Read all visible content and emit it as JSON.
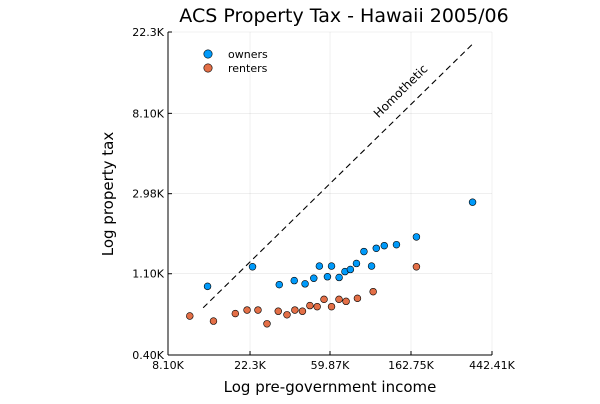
{
  "chart_data": {
    "type": "scatter",
    "title": "ACS Property Tax - Hawaii 2005/06",
    "xlabel": "Log pre-government income",
    "ylabel": "Log property tax",
    "x_scale": "log",
    "y_scale": "log",
    "xlim": [
      8100,
      442410
    ],
    "ylim": [
      400,
      22300
    ],
    "x_ticks": [
      {
        "value": 8100,
        "label": "8.10K"
      },
      {
        "value": 22300,
        "label": "22.3K"
      },
      {
        "value": 59870,
        "label": "59.87K"
      },
      {
        "value": 162750,
        "label": "162.75K"
      },
      {
        "value": 442410,
        "label": "442.41K"
      }
    ],
    "y_ticks": [
      {
        "value": 400,
        "label": "0.40K"
      },
      {
        "value": 1100,
        "label": "1.10K"
      },
      {
        "value": 2980,
        "label": "2.98K"
      },
      {
        "value": 8100,
        "label": "8.10K"
      },
      {
        "value": 22300,
        "label": "22.3K"
      }
    ],
    "grid": true,
    "legend_position": "top-left",
    "series": [
      {
        "name": "owners",
        "color": "#009AFA",
        "points": [
          [
            13200,
            940
          ],
          [
            23000,
            1200
          ],
          [
            32000,
            960
          ],
          [
            38500,
            1010
          ],
          [
            44000,
            970
          ],
          [
            49000,
            1040
          ],
          [
            52500,
            1210
          ],
          [
            58000,
            1060
          ],
          [
            61000,
            1210
          ],
          [
            67000,
            1050
          ],
          [
            72000,
            1130
          ],
          [
            77000,
            1160
          ],
          [
            83000,
            1250
          ],
          [
            91000,
            1450
          ],
          [
            100000,
            1210
          ],
          [
            106000,
            1510
          ],
          [
            117000,
            1560
          ],
          [
            136000,
            1580
          ],
          [
            174000,
            1740
          ],
          [
            348000,
            2680
          ]
        ]
      },
      {
        "name": "renters",
        "color": "#E36F47",
        "points": [
          [
            10600,
            650
          ],
          [
            14200,
            610
          ],
          [
            18600,
            670
          ],
          [
            21500,
            700
          ],
          [
            24600,
            700
          ],
          [
            27500,
            590
          ],
          [
            31600,
            690
          ],
          [
            35200,
            660
          ],
          [
            38800,
            700
          ],
          [
            42600,
            690
          ],
          [
            46700,
            740
          ],
          [
            51100,
            730
          ],
          [
            55600,
            800
          ],
          [
            61000,
            730
          ],
          [
            66900,
            800
          ],
          [
            73000,
            780
          ],
          [
            84000,
            810
          ],
          [
            102000,
            880
          ],
          [
            174000,
            1200
          ]
        ]
      }
    ],
    "reference_line": {
      "label": "Homothetic",
      "style": "dashed",
      "from": [
        12500,
        720
      ],
      "to": [
        350000,
        19300
      ]
    }
  }
}
